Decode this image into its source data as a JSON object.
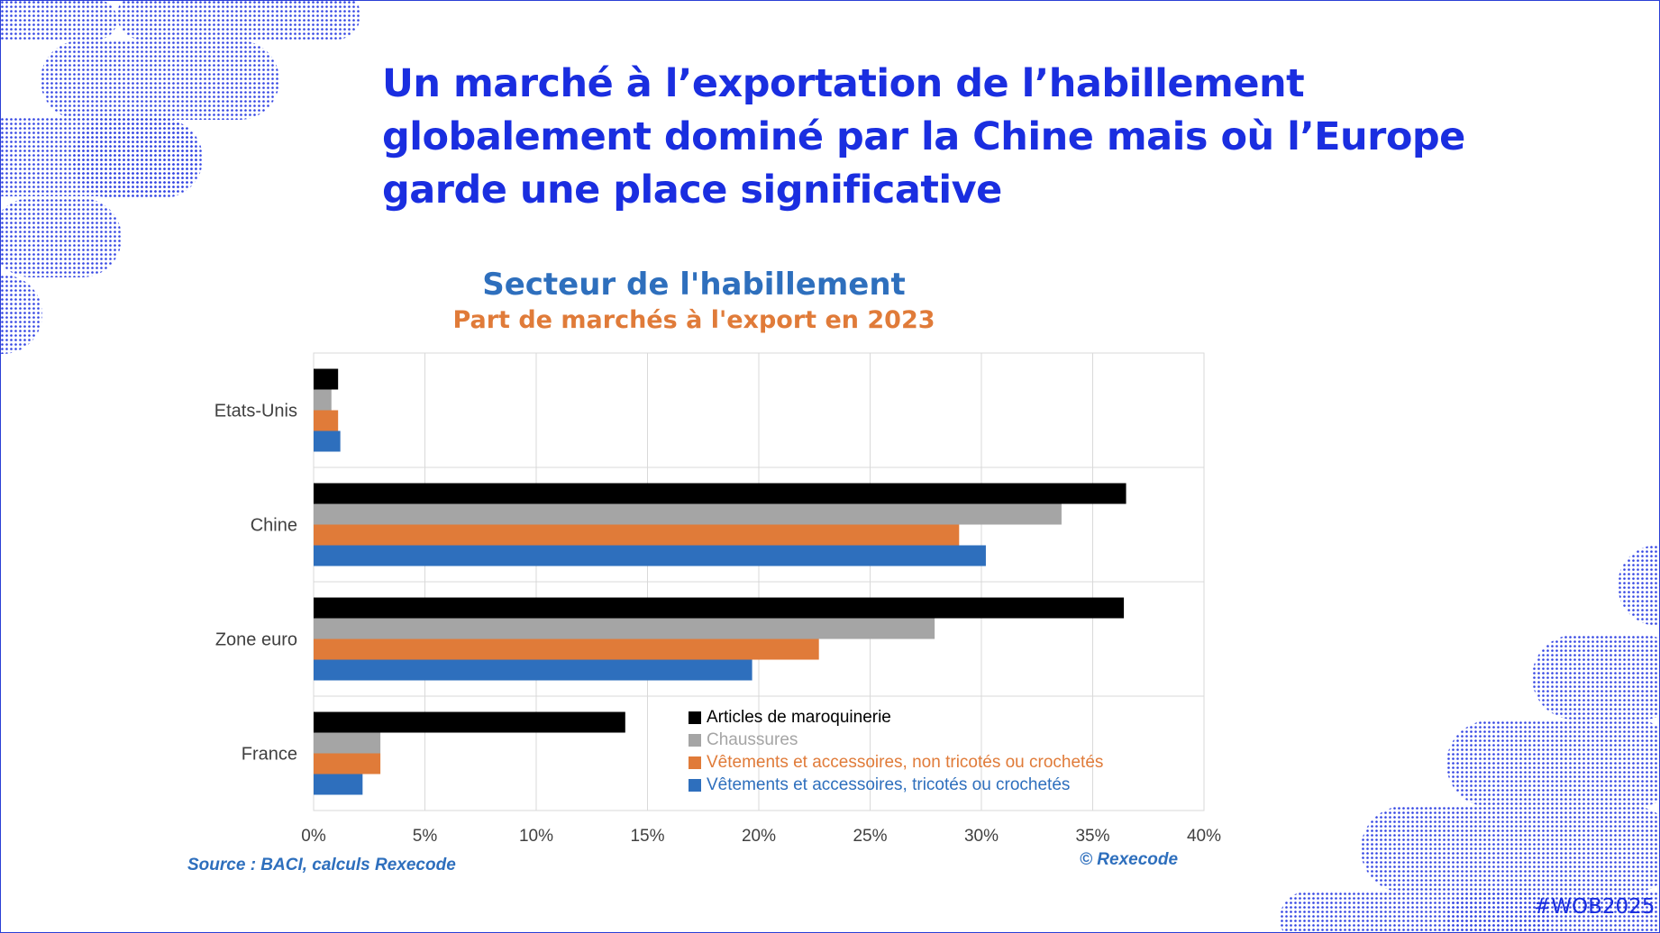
{
  "slide": {
    "title": "Un marché à l’exportation de l’habillement globalement dominé par la Chine mais où l’Europe garde une place significative",
    "hashtag": "#WOB2025",
    "source": "Source :  BACI, calculs Rexecode",
    "copyright": "© Rexecode"
  },
  "chart_data": {
    "type": "bar",
    "orientation": "horizontal",
    "title": "Secteur de l'habillement",
    "subtitle": "Part de marchés à l'export en 2023",
    "categories": [
      "Etats-Unis",
      "Chine",
      "Zone euro",
      "France"
    ],
    "series": [
      {
        "name": "Articles de maroquinerie",
        "color": "#000000",
        "values": [
          1.1,
          36.5,
          36.4,
          14.0
        ]
      },
      {
        "name": "Chaussures",
        "color": "#a5a5a5",
        "values": [
          0.8,
          33.6,
          27.9,
          3.0
        ]
      },
      {
        "name": "Vêtements et accessoires, non tricotés ou crochetés",
        "color": "#e07b39",
        "values": [
          1.1,
          29.0,
          22.7,
          3.0
        ]
      },
      {
        "name": "Vêtements et accessoires, tricotés ou crochetés",
        "color": "#2e6fbd",
        "values": [
          1.2,
          30.2,
          19.7,
          2.2
        ]
      }
    ],
    "xlim": [
      0,
      40
    ],
    "xticks": [
      "0%",
      "5%",
      "10%",
      "15%",
      "20%",
      "25%",
      "30%",
      "35%",
      "40%"
    ],
    "grid": true,
    "legend_position": "bottom-right"
  }
}
